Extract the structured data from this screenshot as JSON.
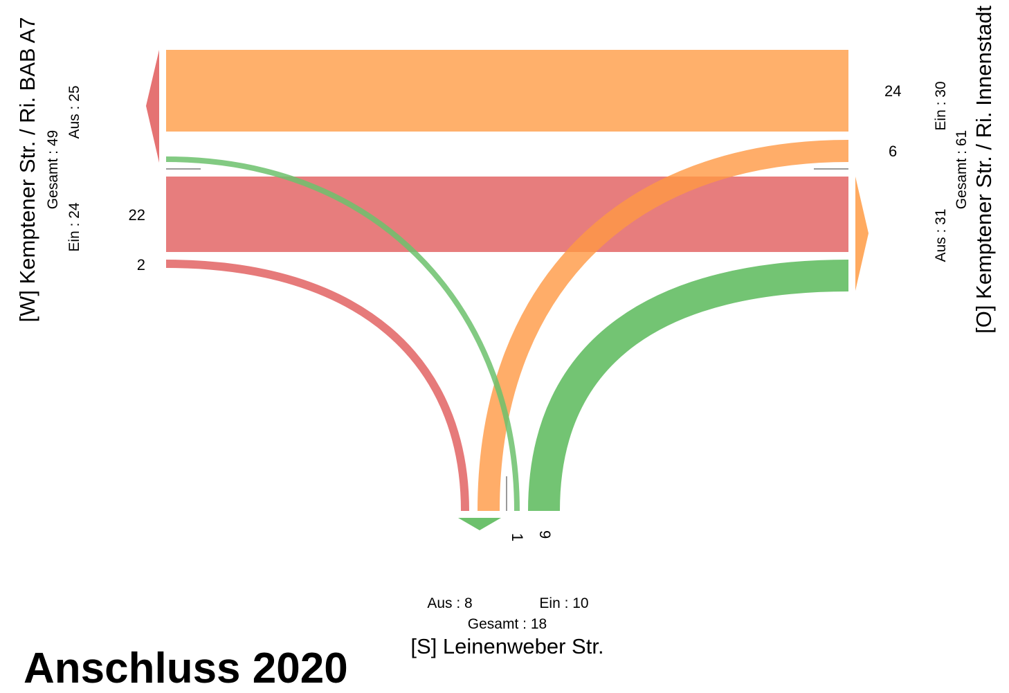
{
  "approaches": {
    "west": {
      "name": "[W] Kemptener Str. / Ri. BAB A7",
      "gesamt": "Gesamt : 49",
      "aus": "Aus : 25",
      "ein": "Ein : 24"
    },
    "east": {
      "name": "[O] Kemptener Str. / Ri. Innenstadt",
      "gesamt": "Gesamt : 61",
      "aus": "Aus : 31",
      "ein": "Ein : 30"
    },
    "south": {
      "name": "[S] Leinenweber Str.",
      "gesamt": "Gesamt : 18",
      "aus": "Aus : 8",
      "ein": "Ein : 10"
    }
  },
  "flow_labels": {
    "west_straight": "22",
    "west_right": "2",
    "east_straight": "24",
    "east_left": "6",
    "south_left": "1",
    "south_right": "9"
  },
  "chart_data": {
    "type": "sankey",
    "flows": [
      {
        "from": "W",
        "to": "O",
        "value": 22,
        "color": "#e57373"
      },
      {
        "from": "W",
        "to": "S",
        "value": 2,
        "color": "#e57373"
      },
      {
        "from": "O",
        "to": "W",
        "value": 24,
        "color": "#ffaa60"
      },
      {
        "from": "O",
        "to": "S",
        "value": 6,
        "color": "#ffaa60"
      },
      {
        "from": "S",
        "to": "W",
        "value": 1,
        "color": "#6cc16c"
      },
      {
        "from": "S",
        "to": "O",
        "value": 9,
        "color": "#6cc16c"
      }
    ]
  },
  "watermark": "Anschluss 2020",
  "colors": {
    "west": "#e57373",
    "east": "#ffaa60",
    "south": "#6cc16c"
  }
}
